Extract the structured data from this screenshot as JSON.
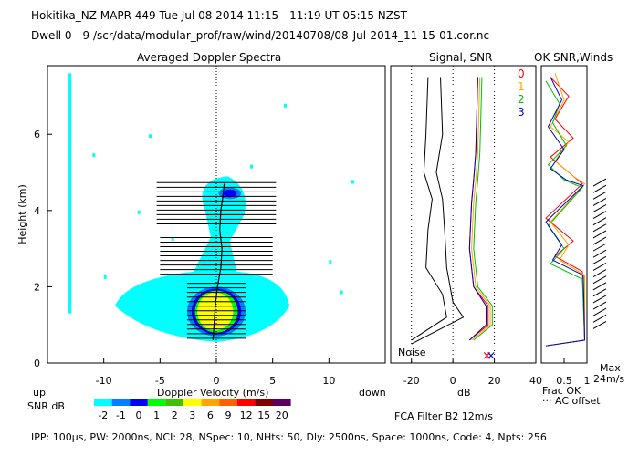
{
  "header": {
    "line1": "Hokitika_NZ   MAPR-449   Tue Jul 08 2014 11:15 - 11:19 UT 05:15 NZST",
    "line2": "Dwell   0 -   9    /scr/data/modular_prof/raw/wind/20140708/08-Jul-2014_11-15-01.cor.nc"
  },
  "footer": {
    "params": "IPP: 100μs,  PW: 2000ns,  NCI:  28,  NSpec: 10, NHts: 50,  Dly: 2500ns,  Space: 1000ns,  Code: 4,  Npts: 256",
    "filter": "FCA Filter B2 12m/s"
  },
  "chart_data": [
    {
      "type": "heatmap",
      "title": "Averaged Doppler Spectra",
      "xlabel": "Doppler Velocity (m/s)",
      "ylabel": "Height (km)",
      "xlim": [
        -15,
        15
      ],
      "ylim": [
        0,
        7.8
      ],
      "x_ticks": [
        -10,
        -5,
        0,
        5,
        10
      ],
      "y_ticks": [
        0,
        2,
        4,
        6
      ],
      "x_left_label": "up",
      "x_right_label": "down",
      "colorbar": {
        "label": "SNR dB",
        "values": [
          "-2",
          "-1",
          "0",
          "1",
          "2",
          "3",
          "6",
          "9",
          "12",
          "15",
          "20"
        ],
        "colors": [
          "#00ffff",
          "#0080ff",
          "#0000ff",
          "#00ff00",
          "#40c000",
          "#ffff00",
          "#ffa500",
          "#ff6000",
          "#ff0000",
          "#800000",
          "#5a0060"
        ]
      },
      "zero_velocity_line": true,
      "mean_velocity_profile": [
        {
          "h": 0.6,
          "v": -0.3
        },
        {
          "h": 1.0,
          "v": -0.2
        },
        {
          "h": 1.5,
          "v": -0.1
        },
        {
          "h": 2.0,
          "v": 0.1
        },
        {
          "h": 2.5,
          "v": 0.4
        },
        {
          "h": 3.0,
          "v": 0.5
        },
        {
          "h": 3.5,
          "v": 0.3
        },
        {
          "h": 4.0,
          "v": 0.4
        },
        {
          "h": 4.4,
          "v": 0.6
        },
        {
          "h": 4.7,
          "v": 0.7
        }
      ]
    },
    {
      "type": "line",
      "title": "Signal, SNR",
      "xlabel": "dB",
      "xlim": [
        -30,
        40
      ],
      "ylim": [
        0,
        7.8
      ],
      "x_ticks": [
        -20,
        0,
        20,
        40
      ],
      "annotation": "Noise",
      "series": [
        {
          "name": "0",
          "color": "#ff0000",
          "values": [
            [
              12,
              7.5
            ],
            [
              11,
              5.5
            ],
            [
              10,
              4.8
            ],
            [
              9,
              4.2
            ],
            [
              8,
              3.0
            ],
            [
              10,
              2.0
            ],
            [
              17,
              1.5
            ],
            [
              17,
              1.0
            ],
            [
              8,
              0.6
            ]
          ]
        },
        {
          "name": "1",
          "color": "#ffa500",
          "values": [
            [
              13,
              7.5
            ],
            [
              12,
              5.5
            ],
            [
              11,
              4.8
            ],
            [
              10,
              4.2
            ],
            [
              9,
              3.0
            ],
            [
              11,
              2.0
            ],
            [
              18,
              1.5
            ],
            [
              18,
              1.0
            ],
            [
              9,
              0.6
            ]
          ]
        },
        {
          "name": "2",
          "color": "#00c000",
          "values": [
            [
              14,
              7.5
            ],
            [
              13,
              5.5
            ],
            [
              12,
              4.8
            ],
            [
              11,
              4.2
            ],
            [
              10,
              3.0
            ],
            [
              12,
              2.0
            ],
            [
              19,
              1.5
            ],
            [
              19,
              1.0
            ],
            [
              10,
              0.6
            ]
          ]
        },
        {
          "name": "3",
          "color": "#0000c0",
          "values": [
            [
              12,
              7.5
            ],
            [
              11,
              5.5
            ],
            [
              10,
              4.8
            ],
            [
              9,
              4.2
            ],
            [
              8,
              3.0
            ],
            [
              10,
              2.0
            ],
            [
              16,
              1.5
            ],
            [
              16,
              1.0
            ],
            [
              8,
              0.6
            ]
          ]
        },
        {
          "name": "",
          "color": "#000000",
          "values": [
            [
              -12,
              7.5
            ],
            [
              -13,
              6.0
            ],
            [
              -14,
              5.0
            ],
            [
              -10,
              4.3
            ],
            [
              -12,
              3.5
            ],
            [
              -13,
              2.5
            ],
            [
              -5,
              1.8
            ],
            [
              -3,
              1.2
            ],
            [
              -20,
              0.6
            ]
          ]
        },
        {
          "name": "",
          "color": "#000000",
          "values": [
            [
              -6,
              7.5
            ],
            [
              -5,
              6.0
            ],
            [
              -8,
              5.0
            ],
            [
              -5,
              4.3
            ],
            [
              -4,
              3.5
            ],
            [
              -3,
              2.5
            ],
            [
              0,
              1.6
            ],
            [
              5,
              1.2
            ],
            [
              -20,
              0.5
            ]
          ]
        }
      ]
    },
    {
      "type": "line",
      "title": "OK SNR,Winds",
      "xlabel": "Frac OK",
      "xlim": [
        0,
        1
      ],
      "ylim": [
        0,
        7.8
      ],
      "x_ticks": [
        0.5,
        1
      ],
      "x_tick_labels": [
        "0.5",
        "1"
      ],
      "legend": [
        "0",
        "1",
        "2",
        "3"
      ],
      "legend_colors": [
        "#ff0000",
        "#ffa500",
        "#00c000",
        "#0000c0"
      ],
      "annotation_1": "Max",
      "annotation_2": "24m/s",
      "note": "··· AC offset",
      "series": [
        {
          "name": "0",
          "values": [
            [
              0.2,
              7.5
            ],
            [
              0.6,
              7.0
            ],
            [
              0.3,
              6.4
            ],
            [
              0.7,
              5.9
            ],
            [
              0.2,
              5.4
            ],
            [
              0.6,
              5.0
            ],
            [
              0.9,
              4.7
            ],
            [
              0.1,
              3.8
            ],
            [
              0.7,
              3.2
            ],
            [
              0.3,
              2.8
            ],
            [
              0.9,
              2.4
            ],
            [
              0.95,
              0.6
            ],
            [
              0.1,
              0.45
            ]
          ]
        },
        {
          "name": "1",
          "values": [
            [
              0.3,
              7.6
            ],
            [
              0.5,
              6.9
            ],
            [
              0.2,
              6.2
            ],
            [
              0.6,
              5.8
            ],
            [
              0.3,
              5.3
            ],
            [
              0.7,
              4.9
            ],
            [
              0.95,
              4.7
            ],
            [
              0.2,
              3.7
            ],
            [
              0.6,
              3.1
            ],
            [
              0.4,
              2.7
            ],
            [
              0.95,
              2.3
            ],
            [
              0.95,
              0.6
            ],
            [
              0.1,
              0.45
            ]
          ]
        },
        {
          "name": "2",
          "values": [
            [
              0.1,
              7.4
            ],
            [
              0.4,
              6.8
            ],
            [
              0.25,
              6.3
            ],
            [
              0.55,
              5.7
            ],
            [
              0.15,
              5.2
            ],
            [
              0.5,
              4.8
            ],
            [
              0.9,
              4.6
            ],
            [
              0.15,
              3.6
            ],
            [
              0.5,
              3.0
            ],
            [
              0.2,
              2.6
            ],
            [
              0.9,
              2.2
            ],
            [
              0.95,
              0.6
            ],
            [
              0.1,
              0.45
            ]
          ]
        },
        {
          "name": "3",
          "values": [
            [
              0.2,
              7.5
            ],
            [
              0.45,
              6.9
            ],
            [
              0.15,
              6.2
            ],
            [
              0.5,
              5.6
            ],
            [
              0.2,
              5.1
            ],
            [
              0.55,
              4.8
            ],
            [
              0.92,
              4.65
            ],
            [
              0.1,
              3.7
            ],
            [
              0.45,
              3.1
            ],
            [
              0.25,
              2.7
            ],
            [
              0.92,
              2.3
            ],
            [
              0.95,
              0.6
            ],
            [
              0.1,
              0.45
            ]
          ]
        }
      ]
    }
  ]
}
